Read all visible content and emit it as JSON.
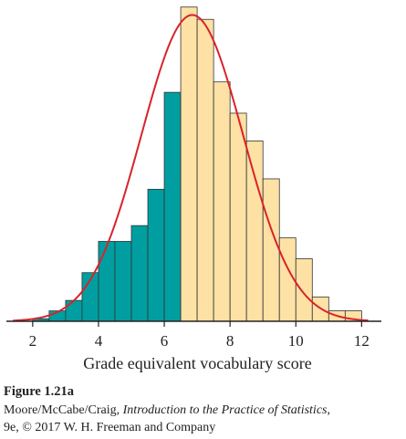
{
  "chart_data": {
    "type": "bar",
    "xlabel": "Grade equivalent vocabulary score",
    "ylabel": "",
    "xlim": [
      1.2,
      12.6
    ],
    "ylim": [
      0,
      100
    ],
    "xticks": [
      2,
      4,
      6,
      8,
      10,
      12
    ],
    "bin_width": 0.5,
    "bins": [
      {
        "x0": 2.0,
        "x1": 2.5,
        "value": 0.8,
        "group": "highlighted"
      },
      {
        "x0": 2.5,
        "x1": 3.0,
        "value": 3.3,
        "group": "highlighted"
      },
      {
        "x0": 3.0,
        "x1": 3.5,
        "value": 6.6,
        "group": "highlighted"
      },
      {
        "x0": 3.5,
        "x1": 4.0,
        "value": 15.4,
        "group": "highlighted"
      },
      {
        "x0": 4.0,
        "x1": 4.5,
        "value": 25.3,
        "group": "highlighted"
      },
      {
        "x0": 4.5,
        "x1": 5.0,
        "value": 25.3,
        "group": "highlighted"
      },
      {
        "x0": 5.0,
        "x1": 5.5,
        "value": 30.3,
        "group": "highlighted"
      },
      {
        "x0": 5.5,
        "x1": 6.0,
        "value": 41.8,
        "group": "highlighted"
      },
      {
        "x0": 6.0,
        "x1": 6.5,
        "value": 72.5,
        "group": "highlighted"
      },
      {
        "x0": 6.5,
        "x1": 7.0,
        "value": 99.5,
        "group": "other"
      },
      {
        "x0": 7.0,
        "x1": 7.5,
        "value": 95.6,
        "group": "other"
      },
      {
        "x0": 7.5,
        "x1": 8.0,
        "value": 75.8,
        "group": "other"
      },
      {
        "x0": 8.0,
        "x1": 8.5,
        "value": 65.9,
        "group": "other"
      },
      {
        "x0": 8.5,
        "x1": 9.0,
        "value": 57.1,
        "group": "other"
      },
      {
        "x0": 9.0,
        "x1": 9.5,
        "value": 45.1,
        "group": "other"
      },
      {
        "x0": 9.5,
        "x1": 10.0,
        "value": 26.4,
        "group": "other"
      },
      {
        "x0": 10.0,
        "x1": 10.5,
        "value": 19.8,
        "group": "other"
      },
      {
        "x0": 10.5,
        "x1": 11.0,
        "value": 7.7,
        "group": "other"
      },
      {
        "x0": 11.0,
        "x1": 11.5,
        "value": 3.3,
        "group": "other"
      },
      {
        "x0": 11.5,
        "x1": 12.0,
        "value": 3.3,
        "group": "other"
      }
    ],
    "curve": {
      "type": "normal",
      "mean": 6.85,
      "sd": 1.55,
      "peak": 97.0,
      "x_range": [
        1.4,
        12.2
      ]
    },
    "colors": {
      "highlighted": "#009ea0",
      "other": "#fde1a5",
      "bar_stroke": "#333333",
      "curve": "#d8232a",
      "axis": "#222222"
    },
    "grid": false,
    "legend": "none"
  },
  "caption": {
    "title": "Figure 1.21a",
    "authors": "Moore/McCabe/Craig, ",
    "book_title": "Introduction to the Practice of Statistics",
    "after_title": ",",
    "line2": "9e, © 2017 W. H. Freeman and Company"
  }
}
